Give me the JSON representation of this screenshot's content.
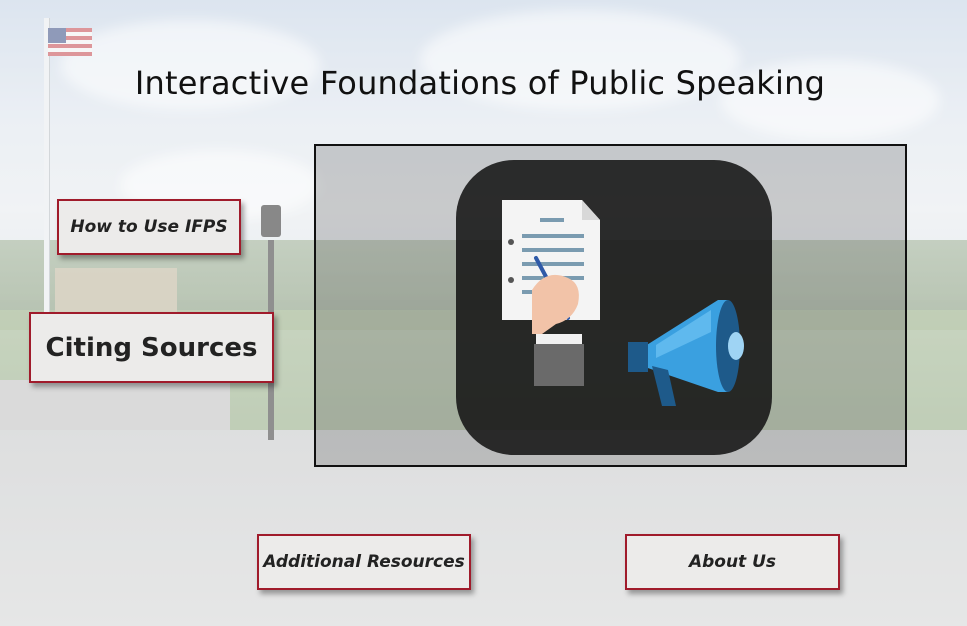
{
  "page": {
    "title": "Interactive Foundations of Public Speaking"
  },
  "nav": {
    "how_to_use": "How to Use IFPS",
    "citing_sources": "Citing Sources",
    "additional_resources": "Additional Resources",
    "about_us": "About Us"
  },
  "media": {
    "icon": "public-speaking-logo-icon",
    "parts": [
      "document-icon",
      "hand-pen-icon",
      "megaphone-icon"
    ]
  },
  "colors": {
    "button_border": "#a01b2b",
    "button_fill": "#ecebea",
    "logo_tile": "#1a1a1a",
    "megaphone_blue": "#3aa0e0"
  }
}
